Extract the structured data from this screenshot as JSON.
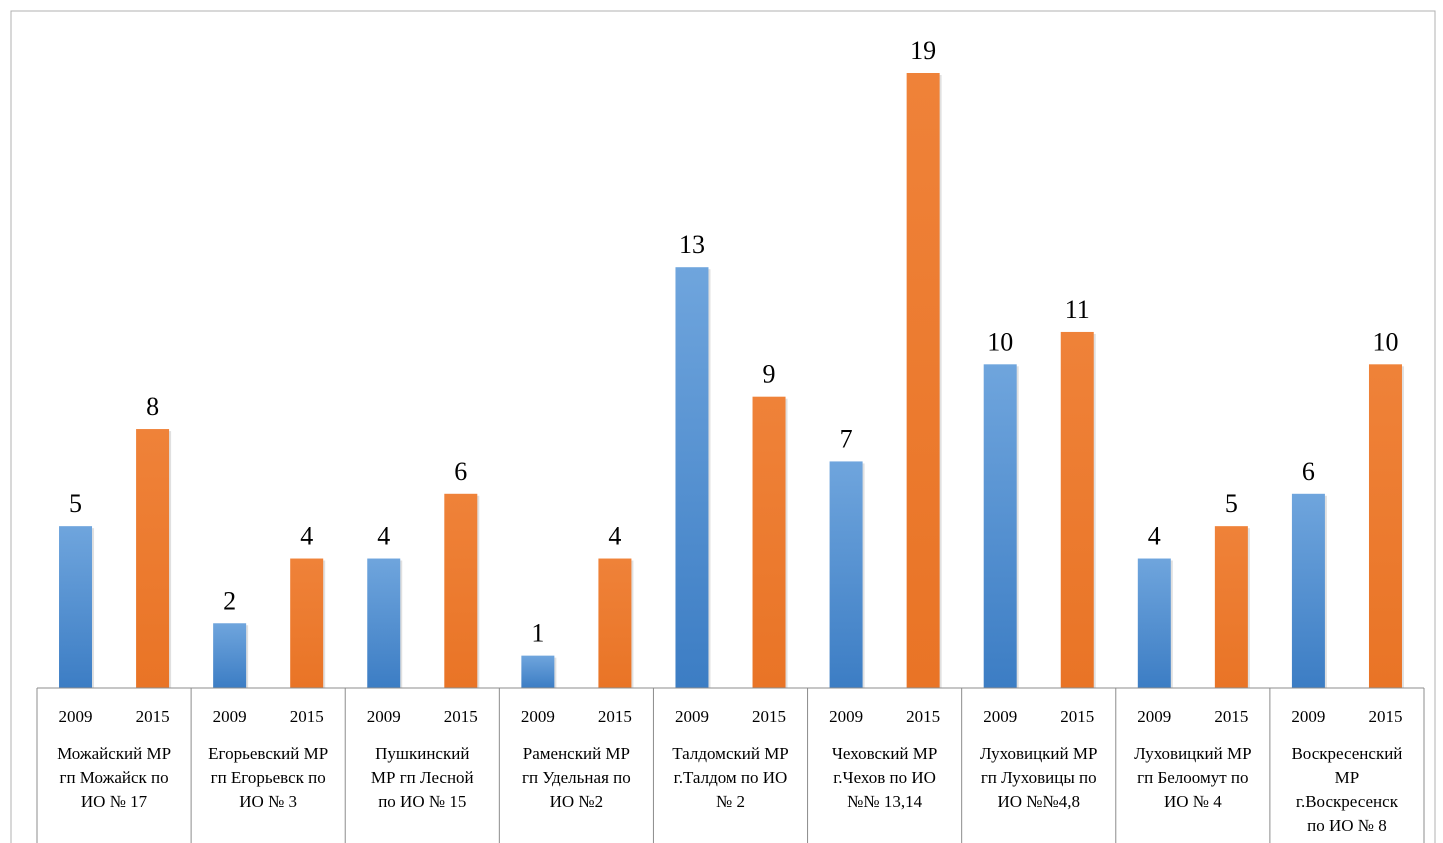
{
  "chart_data": {
    "type": "bar",
    "categories": [
      "Можайский МР гп Можайск по ИО № 17",
      "Егорьевский МР гп Егорьевск по ИО № 3",
      "Пушкинский МР гп Лесной по ИО № 15",
      "Раменский МР гп Удельная по ИО №2",
      "Талдомский МР г.Талдом по ИО № 2",
      "Чеховский МР г.Чехов по ИО №№ 13,14",
      "Луховицкий МР гп Луховицы по ИО №№4,8",
      "Луховицкий МР гп Белоомут по ИО № 4",
      "Воскресенский МР г.Воскресенск по ИО № 8"
    ],
    "category_lines": [
      [
        "Можайский МР",
        "гп Можайск по",
        "ИО № 17"
      ],
      [
        "Егорьевский МР",
        "гп Егорьевск по",
        "ИО № 3"
      ],
      [
        "Пушкинский",
        "МР гп Лесной",
        "по ИО № 15"
      ],
      [
        "Раменский МР",
        "гп Удельная по",
        "ИО №2"
      ],
      [
        "Талдомский МР",
        "г.Талдом по ИО",
        "№ 2"
      ],
      [
        "Чеховский МР",
        "г.Чехов по ИО",
        "№№ 13,14"
      ],
      [
        "Луховицкий МР",
        "гп Луховицы по",
        "ИО №№4,8"
      ],
      [
        "Луховицкий МР",
        "гп Белоомут по",
        "ИО № 4"
      ],
      [
        "Воскресенский",
        "МР",
        "г.Воскресенск",
        "по ИО № 8"
      ]
    ],
    "series": [
      {
        "name": "2009",
        "values": [
          5,
          2,
          4,
          1,
          13,
          7,
          10,
          4,
          6
        ]
      },
      {
        "name": "2015",
        "values": [
          8,
          4,
          6,
          4,
          9,
          19,
          11,
          5,
          10
        ]
      }
    ],
    "ylim": [
      0,
      19
    ],
    "grid": false,
    "legend": "none",
    "colors": {
      "s2009_top": "#6fa5dd",
      "s2009_bottom": "#3c7dc4",
      "s2015": "#ed7d31",
      "axis": "#8c8c8c",
      "border": "#b0b0b0"
    }
  }
}
